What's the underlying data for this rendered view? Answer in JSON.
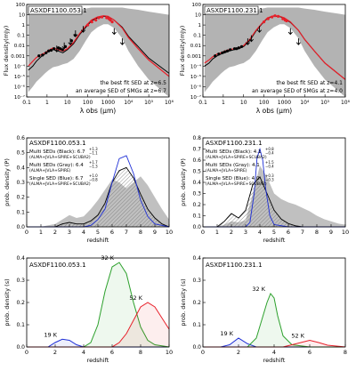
{
  "chart_data": [
    {
      "id": "sed-left",
      "type": "line",
      "label": "ASXDF1100.053.1",
      "xscale": "log",
      "yscale": "log",
      "xlim": [
        0.1,
        1000000
      ],
      "ylim": [
        1e-07,
        100
      ],
      "xlabel": "λ obs (μm)",
      "ylabel": "Flux density(mJy)",
      "xticks": [
        "0.1",
        "1",
        "10",
        "100",
        "1000",
        "10⁴",
        "10⁵",
        "10⁶"
      ],
      "yticks": [
        "10⁻⁷",
        "10⁻⁶",
        "10⁻⁵",
        "10⁻⁴",
        "0.001",
        "0.01",
        "0.1",
        "1",
        "10",
        "100"
      ],
      "legend": [
        "the best fit SED at z=6.5",
        "an average SED of SMGs at z=6.7"
      ],
      "colors": {
        "best": "#e8202a",
        "avg": "#000000",
        "band": "#b3b3b3"
      },
      "best_fit": {
        "x": [
          0.12,
          0.2,
          0.3,
          0.5,
          0.8,
          1.2,
          2,
          3.5,
          6,
          10,
          20,
          40,
          80,
          150,
          300,
          600,
          1000,
          2000,
          5000,
          10000,
          30000,
          100000,
          1000000
        ],
        "y": [
          0.0001,
          0.0003,
          0.0007,
          0.0013,
          0.002,
          0.0035,
          0.006,
          0.004,
          0.003,
          0.005,
          0.02,
          0.15,
          0.8,
          3,
          6,
          8,
          7,
          3,
          0.5,
          0.06,
          0.005,
          0.0004,
          1e-05
        ]
      },
      "average": {
        "x": [
          0.12,
          0.2,
          0.3,
          0.5,
          0.8,
          1.2,
          2,
          3.5,
          6,
          10,
          20,
          40,
          80,
          150,
          300,
          600,
          1000,
          2000,
          5000,
          10000,
          30000,
          100000,
          1000000
        ],
        "y": [
          4e-05,
          0.0001,
          0.0003,
          0.0008,
          0.0015,
          0.003,
          0.004,
          0.003,
          0.002,
          0.004,
          0.015,
          0.12,
          0.6,
          2.5,
          5,
          7,
          6.5,
          3,
          0.6,
          0.08,
          0.008,
          0.0006,
          2e-05
        ]
      },
      "band_lo": [
        3e-07,
        1e-06,
        3e-06,
        8e-06,
        2e-05,
        4e-05,
        8e-05,
        0.0001,
        0.00015,
        0.0002,
        0.0005,
        0.003,
        0.03,
        0.2,
        0.6,
        1.2,
        1.2,
        0.5,
        0.05,
        0.003,
        0.0001,
        5e-06,
        1e-07
      ],
      "band_hi": [
        50,
        50,
        50,
        50,
        50,
        50,
        50,
        40,
        30,
        25,
        25,
        30,
        40,
        50,
        50,
        50,
        50,
        50,
        50,
        40,
        30,
        20,
        10
      ],
      "points": {
        "x": [
          0.4,
          0.6,
          0.9,
          1.2,
          1.6,
          2.2,
          3.6,
          4.5,
          5.8,
          8,
          16,
          24,
          100,
          160,
          250,
          350,
          500,
          850,
          1100,
          1300,
          1600
        ],
        "y": [
          0.001,
          0.0012,
          0.002,
          0.003,
          0.0035,
          0.005,
          0.006,
          0.005,
          0.004,
          0.008,
          0.03,
          0.1,
          1,
          2,
          3,
          5,
          6,
          5,
          4,
          3,
          2
        ]
      },
      "upper_limits": {
        "x": [
          3,
          7,
          14,
          25,
          60,
          2000,
          5000
        ],
        "y": [
          0.01,
          0.02,
          0.05,
          0.3,
          0.8,
          0.5,
          0.05
        ]
      }
    },
    {
      "id": "sed-right",
      "type": "line",
      "label": "ASXDF1100.231.1",
      "xscale": "log",
      "yscale": "log",
      "xlim": [
        0.1,
        1000000
      ],
      "ylim": [
        1e-07,
        100
      ],
      "xlabel": "λ obs (μm)",
      "ylabel": "Flux density(mJy)",
      "xticks": [
        "0.1",
        "1",
        "10",
        "100",
        "1000",
        "10⁴",
        "10⁵",
        "10⁶"
      ],
      "yticks": [
        "10⁻⁷",
        "10⁻⁶",
        "10⁻⁵",
        "10⁻⁴",
        "0.001",
        "0.01",
        "0.1",
        "1",
        "10",
        "100"
      ],
      "legend": [
        "the best fit SED at z=4.1",
        "an average SED of SMGs at z=4.0"
      ],
      "colors": {
        "best": "#e8202a",
        "avg": "#000000",
        "band": "#b3b3b3"
      },
      "best_fit": {
        "x": [
          0.12,
          0.2,
          0.3,
          0.5,
          0.8,
          1.2,
          2,
          3.5,
          6,
          10,
          20,
          40,
          80,
          150,
          300,
          600,
          1000,
          2000,
          5000,
          10000,
          30000,
          100000,
          1000000
        ],
        "y": [
          0.0002,
          0.0004,
          0.0008,
          0.0015,
          0.002,
          0.003,
          0.004,
          0.005,
          0.006,
          0.01,
          0.04,
          0.3,
          1.5,
          5,
          8,
          7,
          5,
          2,
          0.3,
          0.04,
          0.003,
          0.0002,
          5e-06
        ]
      },
      "average": {
        "x": [
          0.12,
          0.2,
          0.3,
          0.5,
          0.8,
          1.2,
          2,
          3.5,
          6,
          10,
          20,
          40,
          80,
          150,
          300,
          600,
          1000,
          2000,
          5000,
          10000,
          30000,
          100000,
          1000000
        ],
        "y": [
          0.0001,
          0.0002,
          0.0005,
          0.001,
          0.0015,
          0.002,
          0.003,
          0.004,
          0.005,
          0.008,
          0.03,
          0.25,
          1.3,
          4.5,
          7.5,
          6.5,
          4.5,
          1.8,
          0.3,
          0.04,
          0.003,
          0.0002,
          5e-06
        ]
      },
      "band_lo": [
        3e-07,
        1e-06,
        3e-06,
        8e-06,
        2e-05,
        4e-05,
        8e-05,
        0.0001,
        0.00015,
        0.0002,
        0.0005,
        0.003,
        0.03,
        0.2,
        0.6,
        1.2,
        1.2,
        0.5,
        0.05,
        0.003,
        0.0001,
        5e-06,
        1e-07
      ],
      "band_hi": [
        50,
        50,
        50,
        50,
        50,
        50,
        50,
        40,
        30,
        25,
        25,
        30,
        40,
        50,
        50,
        50,
        50,
        50,
        50,
        40,
        30,
        20,
        10
      ],
      "points": {
        "x": [
          0.4,
          0.6,
          0.9,
          1.2,
          1.6,
          2.2,
          3.6,
          4.5,
          5.8,
          8,
          100,
          160,
          250,
          350,
          500,
          850,
          1100,
          1300
        ],
        "y": [
          0.001,
          0.0015,
          0.002,
          0.0025,
          0.003,
          0.004,
          0.005,
          0.005,
          0.006,
          0.008,
          2,
          4,
          6,
          8,
          7,
          4,
          3,
          2.5
        ]
      },
      "upper_limits": {
        "x": [
          16,
          24,
          60,
          2000,
          5000
        ],
        "y": [
          0.05,
          0.1,
          0.8,
          0.5,
          0.05
        ]
      }
    },
    {
      "id": "pz-left",
      "type": "area",
      "label": "ASXDF1100.053.1",
      "xlim": [
        0,
        10
      ],
      "ylim": [
        0,
        0.6
      ],
      "xlabel": "redshift",
      "ylabel": "prob. density (P)",
      "xticks": [
        "0",
        "1",
        "2",
        "3",
        "4",
        "5",
        "6",
        "7",
        "8",
        "9",
        "10"
      ],
      "yticks": [
        "0.0",
        "0.1",
        "0.2",
        "0.3",
        "0.4",
        "0.5",
        "0.6"
      ],
      "legend": [
        {
          "name": "Multi SEDs (Black): 6.7",
          "sup": "+1.3",
          "sub": "−1.1",
          "note": "(ALMA+JVLA+SPIRE+SCUBA2)",
          "color": "#000000"
        },
        {
          "name": "Multi SEDs (Gray): 6.4",
          "sup": "+1.7",
          "sub": "−1.3",
          "note": "(ALMA+JVLA+SPIRE)",
          "color": "#999999"
        },
        {
          "name": "Single SED (Blue): 6.7",
          "sup": "+1.0",
          "sub": "−0.8",
          "note": "(ALMA+JVLA+SPIRE+SCUBA2)",
          "color": "#1e2fd6"
        }
      ],
      "series": [
        {
          "name": "Gray",
          "x": [
            0,
            1,
            1.5,
            2,
            2.5,
            3,
            3.5,
            4,
            4.5,
            5,
            5.5,
            6,
            6.5,
            7,
            7.5,
            8,
            8.5,
            9,
            9.5,
            10
          ],
          "y": [
            0,
            0,
            0.01,
            0.02,
            0.05,
            0.08,
            0.06,
            0.07,
            0.12,
            0.18,
            0.25,
            0.32,
            0.3,
            0.26,
            0.3,
            0.34,
            0.28,
            0.2,
            0.12,
            0.05
          ]
        },
        {
          "name": "Black",
          "x": [
            0,
            1,
            2,
            2.5,
            3,
            3.5,
            4,
            4.5,
            5,
            5.5,
            6,
            6.5,
            7,
            7.5,
            8,
            8.5,
            9,
            9.5,
            10
          ],
          "y": [
            0,
            0,
            0,
            0.02,
            0.03,
            0.02,
            0.02,
            0.04,
            0.08,
            0.16,
            0.3,
            0.38,
            0.4,
            0.33,
            0.22,
            0.12,
            0.06,
            0.02,
            0
          ]
        },
        {
          "name": "Blue",
          "x": [
            0,
            4,
            4.5,
            5,
            5.5,
            6,
            6.5,
            7,
            7.5,
            8,
            8.5,
            9,
            10
          ],
          "y": [
            0,
            0,
            0.01,
            0.05,
            0.12,
            0.3,
            0.46,
            0.48,
            0.36,
            0.18,
            0.07,
            0.02,
            0
          ]
        }
      ]
    },
    {
      "id": "pz-right",
      "type": "area",
      "label": "ASXDF1100.231.1",
      "xlim": [
        0,
        10
      ],
      "ylim": [
        0,
        0.8
      ],
      "xlabel": "redshift",
      "ylabel": "prob. density (P)",
      "xticks": [
        "0",
        "1",
        "2",
        "3",
        "4",
        "5",
        "6",
        "7",
        "8",
        "9",
        "10"
      ],
      "yticks": [
        "0.0",
        "0.1",
        "0.2",
        "0.3",
        "0.4",
        "0.5",
        "0.6",
        "0.7",
        "0.8"
      ],
      "legend": [
        {
          "name": "Multi SEDs (Black): 4.1",
          "sup": "+0.8",
          "sub": "−0.4",
          "note": "(ALMA+JVLA+SPIRE+SCUBA2)",
          "color": "#000000"
        },
        {
          "name": "Multi SEDs (Gray): 4.1",
          "sup": "+1.5",
          "sub": "−0.4",
          "note": "(ALMA+JVLA+SPIRE)",
          "color": "#999999"
        },
        {
          "name": "Single SED (Blue): 4.0",
          "sup": "+0.3",
          "sub": "−0.3",
          "note": "(ALMA+JVLA+SPIRE+SCUBA2)",
          "color": "#1e2fd6"
        }
      ],
      "series": [
        {
          "name": "Gray",
          "x": [
            0,
            1,
            1.5,
            2,
            2.5,
            3,
            3.5,
            4,
            4.5,
            5,
            5.5,
            6,
            6.5,
            7,
            7.5,
            8,
            8.5,
            9,
            9.5,
            10
          ],
          "y": [
            0,
            0,
            0.02,
            0.05,
            0.04,
            0.06,
            0.3,
            0.55,
            0.45,
            0.3,
            0.25,
            0.22,
            0.2,
            0.17,
            0.14,
            0.1,
            0.07,
            0.05,
            0.03,
            0.02
          ]
        },
        {
          "name": "Black",
          "x": [
            0,
            1,
            1.5,
            2,
            2.5,
            3,
            3.5,
            4,
            4.5,
            5,
            5.5,
            6,
            6.5,
            7,
            8,
            10
          ],
          "y": [
            0,
            0,
            0.05,
            0.12,
            0.08,
            0.15,
            0.38,
            0.45,
            0.3,
            0.15,
            0.07,
            0.03,
            0.01,
            0,
            0,
            0
          ]
        },
        {
          "name": "Blue",
          "x": [
            0,
            3,
            3.3,
            3.6,
            3.8,
            4,
            4.2,
            4.4,
            4.7,
            5,
            6,
            10
          ],
          "y": [
            0,
            0,
            0.04,
            0.3,
            0.62,
            0.7,
            0.6,
            0.35,
            0.1,
            0.02,
            0,
            0
          ]
        }
      ]
    },
    {
      "id": "pz-temp-left",
      "type": "line",
      "label": "ASXDF1100.053.1",
      "xlim": [
        0,
        10
      ],
      "ylim": [
        0,
        0.4
      ],
      "xlabel": "redshift",
      "ylabel": "prob. density (s)",
      "xticks": [
        "0",
        "2",
        "4",
        "6",
        "8",
        "10"
      ],
      "yticks": [
        "0.0",
        "0.1",
        "0.2",
        "0.3",
        "0.4"
      ],
      "series": [
        {
          "name": "19 K",
          "color": "#1e2fd6",
          "x": [
            0,
            1.5,
            2,
            2.5,
            3,
            3.5,
            4,
            5,
            10
          ],
          "y": [
            0,
            0,
            0.02,
            0.035,
            0.03,
            0.01,
            0,
            0,
            0
          ]
        },
        {
          "name": "32 K",
          "color": "#2ca02c",
          "x": [
            0,
            4,
            4.5,
            5,
            5.5,
            6,
            6.5,
            7,
            7.5,
            8,
            8.5,
            9,
            10
          ],
          "y": [
            0,
            0,
            0.02,
            0.1,
            0.25,
            0.36,
            0.38,
            0.33,
            0.2,
            0.09,
            0.03,
            0.01,
            0
          ]
        },
        {
          "name": "52 K",
          "color": "#e8202a",
          "x": [
            0,
            6,
            6.5,
            7,
            7.5,
            8,
            8.5,
            9,
            9.5,
            10
          ],
          "y": [
            0,
            0,
            0.02,
            0.06,
            0.12,
            0.18,
            0.2,
            0.18,
            0.13,
            0.08
          ]
        }
      ]
    },
    {
      "id": "pz-temp-right",
      "type": "line",
      "label": "ASXDF1100.231.1",
      "xlim": [
        0,
        8
      ],
      "ylim": [
        0,
        0.4
      ],
      "xlabel": "redshift",
      "ylabel": "prob. density (s)",
      "xticks": [
        "0",
        "2",
        "4",
        "6",
        "8"
      ],
      "yticks": [
        "0.0",
        "0.1",
        "0.2",
        "0.3",
        "0.4"
      ],
      "series": [
        {
          "name": "19 K",
          "color": "#1e2fd6",
          "x": [
            0,
            1,
            1.5,
            2,
            2.5,
            3,
            8
          ],
          "y": [
            0,
            0,
            0.01,
            0.04,
            0.015,
            0,
            0
          ]
        },
        {
          "name": "32 K",
          "color": "#2ca02c",
          "x": [
            0,
            2.5,
            3,
            3.3,
            3.6,
            3.8,
            4,
            4.2,
            4.5,
            5,
            6,
            8
          ],
          "y": [
            0,
            0,
            0.04,
            0.12,
            0.2,
            0.24,
            0.22,
            0.14,
            0.05,
            0.01,
            0,
            0
          ]
        },
        {
          "name": "52 K",
          "color": "#e8202a",
          "x": [
            0,
            4.5,
            5,
            5.5,
            6,
            6.5,
            7,
            8
          ],
          "y": [
            0,
            0,
            0.01,
            0.02,
            0.03,
            0.02,
            0.008,
            0
          ]
        }
      ]
    }
  ]
}
